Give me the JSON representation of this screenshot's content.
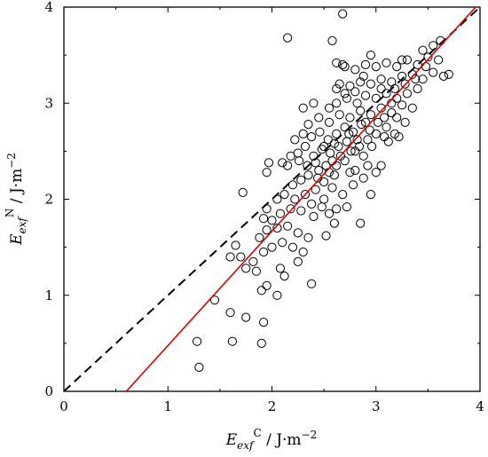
{
  "chart_data": {
    "type": "scatter",
    "xlabel": {
      "base": "E",
      "sub": "exf",
      "sup": "C",
      "unit": " / J·m",
      "unit_sup": "−2"
    },
    "ylabel": {
      "base": "E",
      "sub": "exf",
      "sup": "N",
      "unit": " / J·m",
      "unit_sup": "−2"
    },
    "xlim": [
      0,
      4
    ],
    "ylim": [
      0,
      4
    ],
    "xticks": [
      "0",
      "1",
      "2",
      "3",
      "4"
    ],
    "yticks": [
      "0",
      "1",
      "2",
      "3",
      "4"
    ],
    "grid": false,
    "legend": "none",
    "marker": "open-circle",
    "colors": {
      "points": "#000000",
      "fit_line": "#e00000",
      "identity_line": "#000000"
    },
    "reference_lines": [
      {
        "name": "identity",
        "style": "dashed",
        "color": "#000000",
        "points": [
          [
            0,
            0
          ],
          [
            4,
            4
          ]
        ]
      },
      {
        "name": "fit",
        "style": "solid",
        "color": "#e00000",
        "points": [
          [
            0.6,
            0
          ],
          [
            4,
            4.05
          ]
        ]
      }
    ],
    "points": [
      [
        1.3,
        0.25
      ],
      [
        1.28,
        0.52
      ],
      [
        1.62,
        0.52
      ],
      [
        1.6,
        0.82
      ],
      [
        1.9,
        0.5
      ],
      [
        1.92,
        0.72
      ],
      [
        1.45,
        0.95
      ],
      [
        1.75,
        0.77
      ],
      [
        1.9,
        1.05
      ],
      [
        1.95,
        1.1
      ],
      [
        1.85,
        1.25
      ],
      [
        2.05,
        1.0
      ],
      [
        2.12,
        1.2
      ],
      [
        2.08,
        1.28
      ],
      [
        2.25,
        1.35
      ],
      [
        2.38,
        1.12
      ],
      [
        1.6,
        1.4
      ],
      [
        1.65,
        1.52
      ],
      [
        1.7,
        1.4
      ],
      [
        1.75,
        1.28
      ],
      [
        1.82,
        1.35
      ],
      [
        1.92,
        1.45
      ],
      [
        2.0,
        1.5
      ],
      [
        2.1,
        1.55
      ],
      [
        2.2,
        1.5
      ],
      [
        2.3,
        1.45
      ],
      [
        1.88,
        1.6
      ],
      [
        1.95,
        1.68
      ],
      [
        2.05,
        1.7
      ],
      [
        2.15,
        1.72
      ],
      [
        2.25,
        1.65
      ],
      [
        2.35,
        1.6
      ],
      [
        2.52,
        1.62
      ],
      [
        2.6,
        1.75
      ],
      [
        2.85,
        1.75
      ],
      [
        1.92,
        1.8
      ],
      [
        2.0,
        1.78
      ],
      [
        2.08,
        1.85
      ],
      [
        2.18,
        1.9
      ],
      [
        2.28,
        1.88
      ],
      [
        2.4,
        1.82
      ],
      [
        2.55,
        1.85
      ],
      [
        2.62,
        1.9
      ],
      [
        2.72,
        1.92
      ],
      [
        1.95,
        1.9
      ],
      [
        2.05,
        2.0
      ],
      [
        2.12,
        2.05
      ],
      [
        2.22,
        2.0
      ],
      [
        2.32,
        2.05
      ],
      [
        2.42,
        2.1
      ],
      [
        2.5,
        2.0
      ],
      [
        2.58,
        2.12
      ],
      [
        2.68,
        2.05
      ],
      [
        2.78,
        2.15
      ],
      [
        2.88,
        2.22
      ],
      [
        1.72,
        2.07
      ],
      [
        1.95,
        2.28
      ],
      [
        1.97,
        2.38
      ],
      [
        2.1,
        2.38
      ],
      [
        2.15,
        2.35
      ],
      [
        2.2,
        2.15
      ],
      [
        2.28,
        2.2
      ],
      [
        2.35,
        2.25
      ],
      [
        2.45,
        2.3
      ],
      [
        2.55,
        2.28
      ],
      [
        2.62,
        2.35
      ],
      [
        2.7,
        2.4
      ],
      [
        2.8,
        2.3
      ],
      [
        2.92,
        2.35
      ],
      [
        3.05,
        2.35
      ],
      [
        2.25,
        2.48
      ],
      [
        2.32,
        2.55
      ],
      [
        2.4,
        2.45
      ],
      [
        2.48,
        2.52
      ],
      [
        2.56,
        2.48
      ],
      [
        2.64,
        2.55
      ],
      [
        2.72,
        2.6
      ],
      [
        2.8,
        2.5
      ],
      [
        2.88,
        2.45
      ],
      [
        2.96,
        2.55
      ],
      [
        2.22,
        2.62
      ],
      [
        2.3,
        2.68
      ],
      [
        2.38,
        2.65
      ],
      [
        2.46,
        2.7
      ],
      [
        2.54,
        2.62
      ],
      [
        2.62,
        2.68
      ],
      [
        2.7,
        2.75
      ],
      [
        2.78,
        2.7
      ],
      [
        2.86,
        2.78
      ],
      [
        2.94,
        2.72
      ],
      [
        3.02,
        2.8
      ],
      [
        3.1,
        2.75
      ],
      [
        3.18,
        2.68
      ],
      [
        3.22,
        2.65
      ],
      [
        2.35,
        2.78
      ],
      [
        2.45,
        2.85
      ],
      [
        2.55,
        2.8
      ],
      [
        2.65,
        2.88
      ],
      [
        2.75,
        2.85
      ],
      [
        2.85,
        2.92
      ],
      [
        2.95,
        2.88
      ],
      [
        3.05,
        2.95
      ],
      [
        3.15,
        2.9
      ],
      [
        3.25,
        2.98
      ],
      [
        2.55,
        2.95
      ],
      [
        2.62,
        3.0
      ],
      [
        2.72,
        3.05
      ],
      [
        2.82,
        3.0
      ],
      [
        2.9,
        3.08
      ],
      [
        3.0,
        3.05
      ],
      [
        3.1,
        3.1
      ],
      [
        3.2,
        3.05
      ],
      [
        3.3,
        3.1
      ],
      [
        3.4,
        3.15
      ],
      [
        2.62,
        3.15
      ],
      [
        2.65,
        3.2
      ],
      [
        2.75,
        3.18
      ],
      [
        2.85,
        3.22
      ],
      [
        2.95,
        3.2
      ],
      [
        3.05,
        3.25
      ],
      [
        3.15,
        3.22
      ],
      [
        3.25,
        3.28
      ],
      [
        3.35,
        3.3
      ],
      [
        3.45,
        3.25
      ],
      [
        3.55,
        3.32
      ],
      [
        3.65,
        3.28
      ],
      [
        2.7,
        3.38
      ],
      [
        2.8,
        3.35
      ],
      [
        2.9,
        3.4
      ],
      [
        3.0,
        3.38
      ],
      [
        3.1,
        3.42
      ],
      [
        3.2,
        3.38
      ],
      [
        3.3,
        3.45
      ],
      [
        3.4,
        3.4
      ],
      [
        3.5,
        3.48
      ],
      [
        3.6,
        3.45
      ],
      [
        2.62,
        3.42
      ],
      [
        2.68,
        3.4
      ],
      [
        2.95,
        3.5
      ],
      [
        3.25,
        3.45
      ],
      [
        3.45,
        3.55
      ],
      [
        3.55,
        3.6
      ],
      [
        3.62,
        3.65
      ],
      [
        3.7,
        3.3
      ],
      [
        2.82,
        2.62
      ],
      [
        3.12,
        2.6
      ],
      [
        2.15,
        3.68
      ],
      [
        2.68,
        3.93
      ],
      [
        2.6,
        2.25
      ],
      [
        2.42,
        2.38
      ],
      [
        2.5,
        2.18
      ],
      [
        2.75,
        2.28
      ],
      [
        2.38,
        1.95
      ],
      [
        2.48,
        1.92
      ],
      [
        2.95,
        2.05
      ],
      [
        3.0,
        2.28
      ],
      [
        3.2,
        2.85
      ],
      [
        3.28,
        2.8
      ],
      [
        3.35,
        2.95
      ],
      [
        2.3,
        2.95
      ],
      [
        2.4,
        3.0
      ],
      [
        3.15,
        3.0
      ],
      [
        2.7,
        3.1
      ],
      [
        3.05,
        3.15
      ],
      [
        2.5,
        2.55
      ],
      [
        2.58,
        2.4
      ],
      [
        2.66,
        2.45
      ],
      [
        2.76,
        2.5
      ],
      [
        2.84,
        2.55
      ],
      [
        2.92,
        2.62
      ],
      [
        3.0,
        2.68
      ],
      [
        3.08,
        2.65
      ],
      [
        2.18,
        2.45
      ],
      [
        2.26,
        2.4
      ],
      [
        2.34,
        2.35
      ],
      [
        2.44,
        2.22
      ],
      [
        2.52,
        2.35
      ],
      [
        2.6,
        2.58
      ],
      [
        2.74,
        2.68
      ],
      [
        2.9,
        2.8
      ],
      [
        3.08,
        2.85
      ],
      [
        3.18,
        3.15
      ],
      [
        3.28,
        3.2
      ],
      [
        3.38,
        3.25
      ],
      [
        3.48,
        3.38
      ],
      [
        2.58,
        3.65
      ],
      [
        2.8,
        3.12
      ],
      [
        2.88,
        3.28
      ]
    ]
  }
}
